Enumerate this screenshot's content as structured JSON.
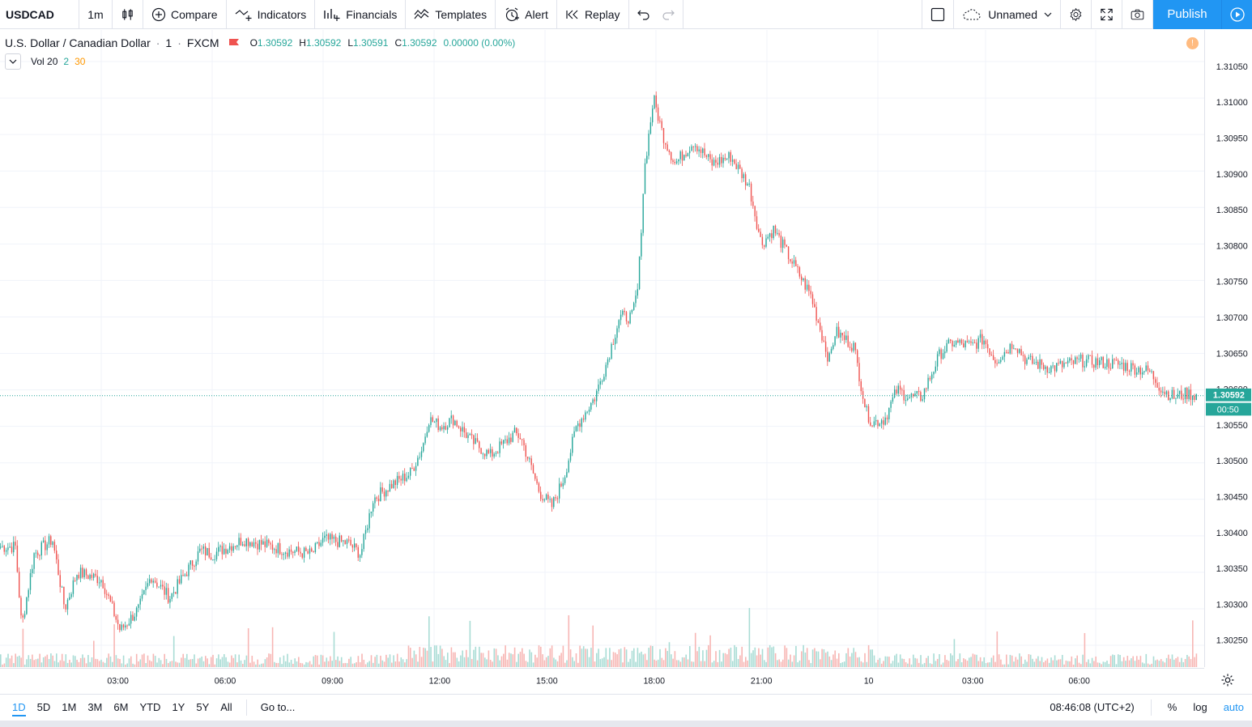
{
  "toolbar": {
    "symbol": "USDCAD",
    "interval": "1m",
    "compare": "Compare",
    "indicators": "Indicators",
    "financials": "Financials",
    "templates": "Templates",
    "alert": "Alert",
    "replay": "Replay",
    "layout_name": "Unnamed",
    "publish": "Publish"
  },
  "legend": {
    "title": "U.S. Dollar / Canadian Dollar",
    "interval": "1",
    "dot": "·",
    "exchange": "FXCM",
    "open_key": "O",
    "open": "1.30592",
    "high_key": "H",
    "high": "1.30592",
    "low_key": "L",
    "low": "1.30591",
    "close_key": "C",
    "close": "1.30592",
    "change": "0.00000 (0.00%)",
    "volume_label": "Vol 20",
    "volume_v1": "2",
    "volume_v2": "30",
    "warning": "!"
  },
  "colors": {
    "up": "#26a69a",
    "down": "#ef5350",
    "accent": "#2196f3",
    "grid": "#f0f3fa",
    "volume_up": "#a9dcd5",
    "volume_down": "#f7b6b4",
    "legend_vol2": "#26a69a",
    "legend_vol30": "#ff9800"
  },
  "chart_data": {
    "type": "candlestick",
    "symbol": "USDCAD",
    "interval": "1",
    "y_ticks": [
      "1.31050",
      "1.31000",
      "1.30950",
      "1.30900",
      "1.30850",
      "1.30800",
      "1.30750",
      "1.30700",
      "1.30650",
      "1.30600",
      "1.30550",
      "1.30500",
      "1.30450",
      "1.30400",
      "1.30350",
      "1.30300",
      "1.30250"
    ],
    "x_ticks": [
      "03:00",
      "06:00",
      "09:00",
      "12:00",
      "15:00",
      "18:00",
      "21:00",
      "10",
      "03:00",
      "06:00"
    ],
    "price_path": [
      {
        "t": "00:40",
        "p": 1.30385
      },
      {
        "t": "00:50",
        "p": 1.30275
      },
      {
        "t": "01:10",
        "p": 1.30375
      },
      {
        "t": "01:40",
        "p": 1.30395
      },
      {
        "t": "02:00",
        "p": 1.303
      },
      {
        "t": "02:20",
        "p": 1.3035
      },
      {
        "t": "03:00",
        "p": 1.3034
      },
      {
        "t": "03:30",
        "p": 1.3027
      },
      {
        "t": "04:00",
        "p": 1.303
      },
      {
        "t": "04:20",
        "p": 1.30345
      },
      {
        "t": "04:50",
        "p": 1.30315
      },
      {
        "t": "05:40",
        "p": 1.3038
      },
      {
        "t": "06:00",
        "p": 1.30375
      },
      {
        "t": "06:50",
        "p": 1.30395
      },
      {
        "t": "08:00",
        "p": 1.3038
      },
      {
        "t": "08:40",
        "p": 1.30375
      },
      {
        "t": "09:00",
        "p": 1.30395
      },
      {
        "t": "09:40",
        "p": 1.3039
      },
      {
        "t": "10:00",
        "p": 1.30375
      },
      {
        "t": "10:20",
        "p": 1.3045
      },
      {
        "t": "10:50",
        "p": 1.3047
      },
      {
        "t": "11:20",
        "p": 1.30485
      },
      {
        "t": "11:40",
        "p": 1.3052
      },
      {
        "t": "11:50",
        "p": 1.3056
      },
      {
        "t": "12:10",
        "p": 1.3055
      },
      {
        "t": "12:30",
        "p": 1.3056
      },
      {
        "t": "13:00",
        "p": 1.3053
      },
      {
        "t": "13:30",
        "p": 1.3051
      },
      {
        "t": "14:10",
        "p": 1.3054
      },
      {
        "t": "14:20",
        "p": 1.30535
      },
      {
        "t": "14:50",
        "p": 1.3046
      },
      {
        "t": "15:10",
        "p": 1.3044
      },
      {
        "t": "15:30",
        "p": 1.3048
      },
      {
        "t": "15:50",
        "p": 1.3055
      },
      {
        "t": "16:20",
        "p": 1.3059
      },
      {
        "t": "16:40",
        "p": 1.3064
      },
      {
        "t": "17:00",
        "p": 1.307
      },
      {
        "t": "17:20",
        "p": 1.307
      },
      {
        "t": "17:30",
        "p": 1.3074
      },
      {
        "t": "17:40",
        "p": 1.309
      },
      {
        "t": "17:55",
        "p": 1.31
      },
      {
        "t": "18:10",
        "p": 1.3095
      },
      {
        "t": "18:30",
        "p": 1.3091
      },
      {
        "t": "19:00",
        "p": 1.3094
      },
      {
        "t": "19:30",
        "p": 1.3091
      },
      {
        "t": "20:00",
        "p": 1.3092
      },
      {
        "t": "20:30",
        "p": 1.3088
      },
      {
        "t": "20:50",
        "p": 1.308
      },
      {
        "t": "21:10",
        "p": 1.3082
      },
      {
        "t": "21:30",
        "p": 1.3079
      },
      {
        "t": "21:50",
        "p": 1.3076
      },
      {
        "t": "22:10",
        "p": 1.3073
      },
      {
        "t": "22:30",
        "p": 1.3067
      },
      {
        "t": "22:40",
        "p": 1.3064
      },
      {
        "t": "22:50",
        "p": 1.3068
      },
      {
        "t": "23:20",
        "p": 1.3066
      },
      {
        "t": "23:40",
        "p": 1.3057
      },
      {
        "t": "23:50",
        "p": 1.30555
      },
      {
        "t": "00:10",
        "p": 1.3056
      },
      {
        "t": "00:30",
        "p": 1.306
      },
      {
        "t": "00:50",
        "p": 1.3059
      },
      {
        "t": "01:10",
        "p": 1.3059
      },
      {
        "t": "01:40",
        "p": 1.3065
      },
      {
        "t": "02:00",
        "p": 1.30665
      },
      {
        "t": "02:30",
        "p": 1.3066
      },
      {
        "t": "02:50",
        "p": 1.3067
      },
      {
        "t": "03:10",
        "p": 1.3064
      },
      {
        "t": "03:40",
        "p": 1.30665
      },
      {
        "t": "04:00",
        "p": 1.3064
      },
      {
        "t": "04:40",
        "p": 1.3063
      },
      {
        "t": "05:30",
        "p": 1.3064
      },
      {
        "t": "06:30",
        "p": 1.30635
      },
      {
        "t": "07:20",
        "p": 1.30625
      },
      {
        "t": "07:40",
        "p": 1.306
      },
      {
        "t": "08:00",
        "p": 1.3059
      },
      {
        "t": "08:20",
        "p": 1.30595
      },
      {
        "t": "08:40",
        "p": 1.30592
      }
    ],
    "last_price": "1.30592",
    "countdown": "00:50"
  },
  "bottombar": {
    "ranges": [
      "1D",
      "5D",
      "1M",
      "3M",
      "6M",
      "YTD",
      "1Y",
      "5Y",
      "All"
    ],
    "goto": "Go to...",
    "clock": "08:46:08 (UTC+2)",
    "percent": "%",
    "log": "log",
    "auto": "auto"
  }
}
